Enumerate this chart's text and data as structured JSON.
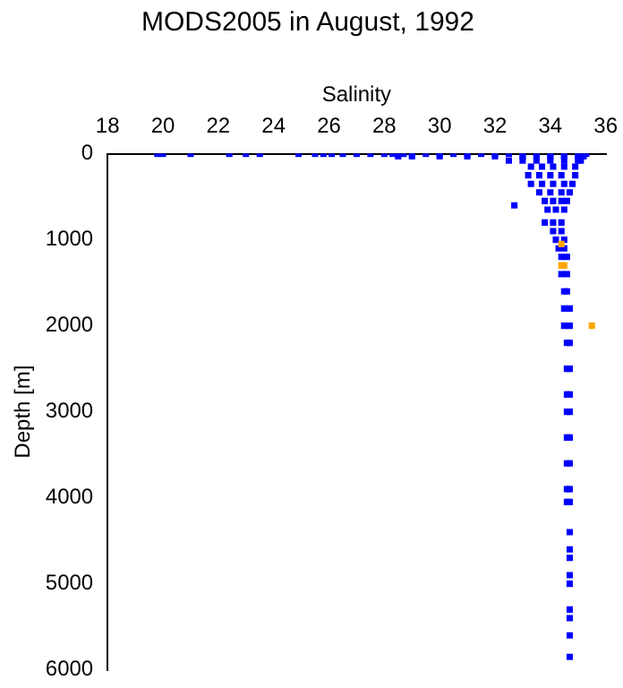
{
  "chart_data": {
    "type": "scatter",
    "title": "MODS2005 in August, 1992",
    "xlabel": "Salinity",
    "ylabel": "Depth [m]",
    "xlim": [
      18,
      36
    ],
    "xticks": [
      18,
      20,
      22,
      24,
      26,
      28,
      30,
      32,
      34,
      36
    ],
    "ylim": [
      6000,
      0
    ],
    "yticks": [
      0,
      1000,
      2000,
      3000,
      4000,
      5000,
      6000
    ],
    "grid": false,
    "legend": false,
    "marker": "square",
    "series": [
      {
        "color": "#0000ff",
        "x": [
          19.8,
          20,
          21,
          22.4,
          23,
          23.5,
          24.9,
          25.5,
          25.8,
          26.1,
          26.5,
          27,
          27.5,
          28,
          28.3,
          28.7,
          29,
          29.5,
          30,
          30.5,
          31,
          31.5,
          32,
          32.5,
          33,
          33.5,
          34,
          34.5,
          35,
          35.3,
          28.5,
          29,
          30,
          31,
          32,
          33,
          33.5,
          34,
          34.5,
          35,
          35.2,
          32.5,
          33,
          33.5,
          34,
          34.5,
          35,
          35.1,
          33.3,
          33.7,
          34.1,
          34.5,
          34.9,
          33.2,
          33.6,
          34,
          34.4,
          34.9,
          33.3,
          33.7,
          34.1,
          34.5,
          34.8,
          33.6,
          34,
          34.4,
          34.7,
          33.8,
          34.1,
          34.4,
          34.6,
          32.7,
          33.9,
          34.2,
          34.5,
          33.8,
          34.1,
          34.4,
          34.1,
          34.4,
          34.2,
          34.5,
          34.3,
          34.5,
          34.4,
          34.6,
          34.4,
          34.6,
          34.5,
          34.6,
          34.5,
          34.7,
          34.5,
          34.7,
          34.6,
          34.7,
          34.6,
          34.7,
          34.6,
          34.7,
          34.6,
          34.7,
          34.6,
          34.7,
          34.6,
          34.7,
          34.6,
          34.7,
          34.6,
          34.7,
          34.7,
          34.7,
          34.7,
          34.7,
          34.7,
          34.7,
          34.7,
          34.7,
          34.7
        ],
        "values": [
          0,
          0,
          0,
          0,
          0,
          0,
          0,
          0,
          0,
          0,
          0,
          0,
          0,
          0,
          0,
          0,
          0,
          0,
          0,
          0,
          0,
          0,
          0,
          0,
          0,
          0,
          0,
          0,
          0,
          0,
          30,
          30,
          30,
          30,
          30,
          30,
          30,
          30,
          30,
          30,
          30,
          80,
          80,
          80,
          80,
          80,
          80,
          80,
          150,
          150,
          150,
          150,
          150,
          250,
          250,
          250,
          250,
          250,
          350,
          350,
          350,
          350,
          350,
          450,
          450,
          450,
          450,
          550,
          550,
          550,
          550,
          600,
          650,
          650,
          650,
          800,
          800,
          800,
          900,
          900,
          1000,
          1000,
          1100,
          1100,
          1200,
          1200,
          1400,
          1400,
          1600,
          1600,
          1800,
          1800,
          2000,
          2000,
          2200,
          2200,
          2500,
          2500,
          2800,
          2800,
          3000,
          3000,
          3300,
          3300,
          3600,
          3600,
          3900,
          3900,
          4050,
          4050,
          4400,
          4600,
          4700,
          4900,
          5000,
          5300,
          5400,
          5600,
          5850
        ]
      },
      {
        "color": "#ffa500",
        "x": [
          34.4,
          34.4,
          34.5,
          35.5
        ],
        "values": [
          1050,
          1300,
          1300,
          2000
        ]
      }
    ]
  }
}
